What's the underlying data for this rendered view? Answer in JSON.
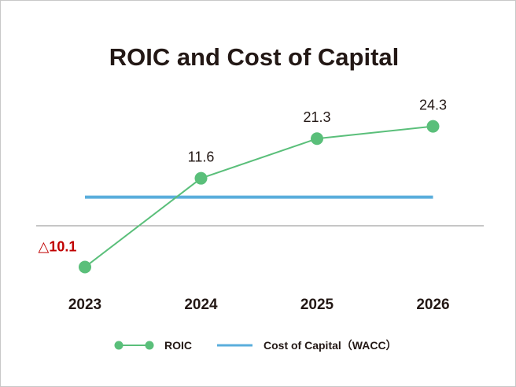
{
  "chart_data": {
    "type": "line",
    "title": "ROIC and Cost of Capital",
    "categories": [
      "2023",
      "2024",
      "2025",
      "2026"
    ],
    "series": [
      {
        "name": "ROIC",
        "values": [
          -10.1,
          11.6,
          21.3,
          24.3
        ],
        "labels": [
          "△10.1",
          "11.6",
          "21.3",
          "24.3"
        ],
        "color": "#5abf7a"
      }
    ],
    "reference_lines": [
      {
        "name": "Cost of Capital（WACC）",
        "value": 7.0,
        "color": "#5aaedc"
      }
    ],
    "ylim": [
      -14,
      30
    ],
    "zero_line": true,
    "negative_label_color": "#c00000",
    "legend_position": "bottom-center",
    "grid": false
  }
}
